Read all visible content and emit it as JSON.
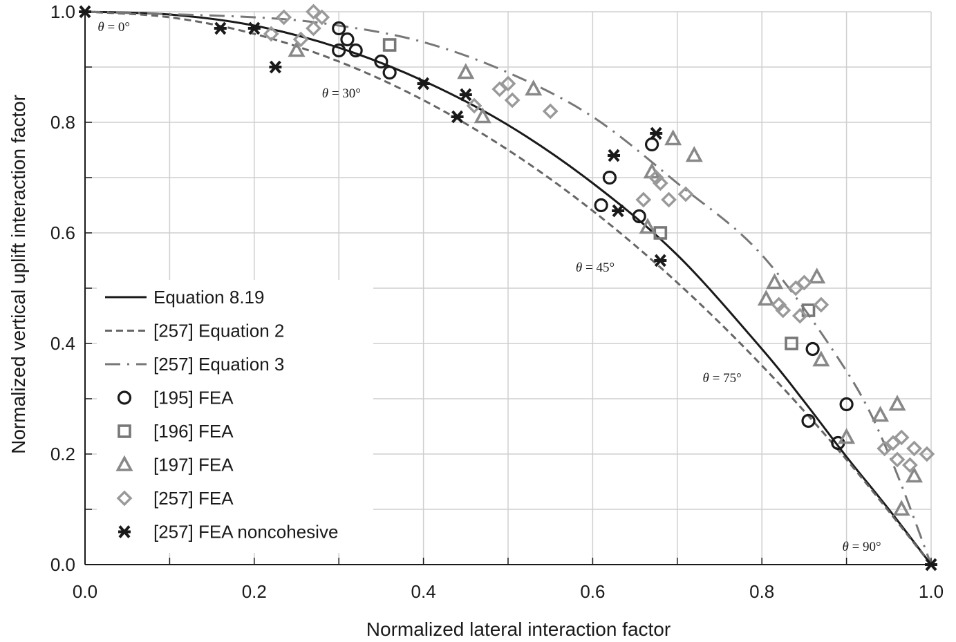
{
  "chart_data": {
    "type": "scatter",
    "title": "",
    "xlabel": "Normalized lateral interaction factor",
    "ylabel": "Normalized vertical uplift interaction factor",
    "xlim": [
      0,
      1
    ],
    "ylim": [
      0,
      1
    ],
    "xticks": [
      "0.0",
      "0.2",
      "0.4",
      "0.6",
      "0.8",
      "1.0"
    ],
    "yticks": [
      "0.0",
      "0.2",
      "0.4",
      "0.6",
      "0.8",
      "1.0"
    ],
    "xtick_values": [
      0,
      0.2,
      0.4,
      0.6,
      0.8,
      1.0
    ],
    "ytick_values": [
      0,
      0.2,
      0.4,
      0.6,
      0.8,
      1.0
    ],
    "grid": true,
    "legend_position": "lower-left",
    "annotations": [
      {
        "text": "θ = 0°",
        "x": 0.015,
        "y": 0.965
      },
      {
        "text": "θ = 30°",
        "x": 0.28,
        "y": 0.845
      },
      {
        "text": "θ = 45°",
        "x": 0.58,
        "y": 0.53
      },
      {
        "text": "θ = 75°",
        "x": 0.73,
        "y": 0.33
      },
      {
        "text": "θ = 90°",
        "x": 0.895,
        "y": 0.025
      }
    ],
    "series": [
      {
        "name": "Equation 8.19",
        "kind": "line",
        "style": "solid",
        "color": "#1a1a1a",
        "x": [
          0,
          0.1,
          0.2,
          0.3,
          0.4,
          0.5,
          0.6,
          0.7,
          0.8,
          0.85,
          0.9,
          0.95,
          1.0
        ],
        "y": [
          1.0,
          0.995,
          0.975,
          0.935,
          0.875,
          0.795,
          0.69,
          0.56,
          0.39,
          0.295,
          0.195,
          0.1,
          0.0
        ]
      },
      {
        "name": "[257] Equation 2",
        "kind": "line",
        "style": "dashed",
        "color": "#666666",
        "x": [
          0,
          0.1,
          0.2,
          0.3,
          0.4,
          0.5,
          0.6,
          0.7,
          0.8,
          0.9,
          1.0
        ],
        "y": [
          1.0,
          0.99,
          0.96,
          0.91,
          0.84,
          0.75,
          0.64,
          0.51,
          0.36,
          0.19,
          0.0
        ]
      },
      {
        "name": "[257] Equation 3",
        "kind": "line",
        "style": "dashdot",
        "color": "#777777",
        "x": [
          0,
          0.2,
          0.3,
          0.4,
          0.5,
          0.6,
          0.7,
          0.8,
          0.9,
          0.95,
          1.0
        ],
        "y": [
          1.0,
          0.99,
          0.975,
          0.945,
          0.89,
          0.81,
          0.69,
          0.56,
          0.35,
          0.2,
          0.0
        ]
      },
      {
        "name": "[195] FEA",
        "kind": "marker",
        "marker": "circle",
        "color": "#1a1a1a",
        "x": [
          0.3,
          0.31,
          0.3,
          0.32,
          0.35,
          0.36,
          0.62,
          0.61,
          0.655,
          0.67,
          0.855,
          0.86,
          0.89,
          0.9
        ],
        "y": [
          0.97,
          0.95,
          0.93,
          0.93,
          0.91,
          0.89,
          0.7,
          0.65,
          0.63,
          0.76,
          0.26,
          0.39,
          0.22,
          0.29
        ]
      },
      {
        "name": "[196] FEA",
        "kind": "marker",
        "marker": "square",
        "color": "#777777",
        "x": [
          0.36,
          0.68,
          0.835,
          0.855
        ],
        "y": [
          0.94,
          0.6,
          0.4,
          0.46
        ]
      },
      {
        "name": "[197] FEA",
        "kind": "marker",
        "marker": "triangle",
        "color": "#888888",
        "x": [
          0.25,
          0.45,
          0.47,
          0.53,
          0.665,
          0.67,
          0.695,
          0.72,
          0.805,
          0.815,
          0.865,
          0.87,
          0.9,
          0.94,
          0.96,
          0.965,
          0.98
        ],
        "y": [
          0.93,
          0.89,
          0.81,
          0.86,
          0.61,
          0.71,
          0.77,
          0.74,
          0.48,
          0.51,
          0.52,
          0.37,
          0.23,
          0.27,
          0.29,
          0.1,
          0.16
        ]
      },
      {
        "name": "[257] FEA",
        "kind": "marker",
        "marker": "diamond",
        "color": "#999999",
        "x": [
          0.22,
          0.235,
          0.255,
          0.27,
          0.27,
          0.28,
          0.46,
          0.49,
          0.5,
          0.505,
          0.55,
          0.66,
          0.675,
          0.68,
          0.69,
          0.71,
          0.82,
          0.825,
          0.84,
          0.845,
          0.85,
          0.87,
          0.945,
          0.955,
          0.96,
          0.965,
          0.975,
          0.98,
          0.995
        ],
        "y": [
          0.96,
          0.99,
          0.95,
          0.97,
          1.0,
          0.99,
          0.83,
          0.86,
          0.87,
          0.84,
          0.82,
          0.66,
          0.7,
          0.69,
          0.66,
          0.67,
          0.47,
          0.46,
          0.5,
          0.45,
          0.51,
          0.47,
          0.21,
          0.22,
          0.19,
          0.23,
          0.18,
          0.21,
          0.2
        ]
      },
      {
        "name": "[257] FEA noncohesive",
        "kind": "marker",
        "marker": "star",
        "color": "#1a1a1a",
        "x": [
          0.0,
          0.16,
          0.2,
          0.225,
          0.4,
          0.44,
          0.45,
          0.625,
          0.63,
          0.675,
          0.68,
          1.0
        ],
        "y": [
          1.0,
          0.97,
          0.97,
          0.9,
          0.87,
          0.81,
          0.85,
          0.74,
          0.64,
          0.78,
          0.55,
          0.0
        ]
      }
    ]
  }
}
